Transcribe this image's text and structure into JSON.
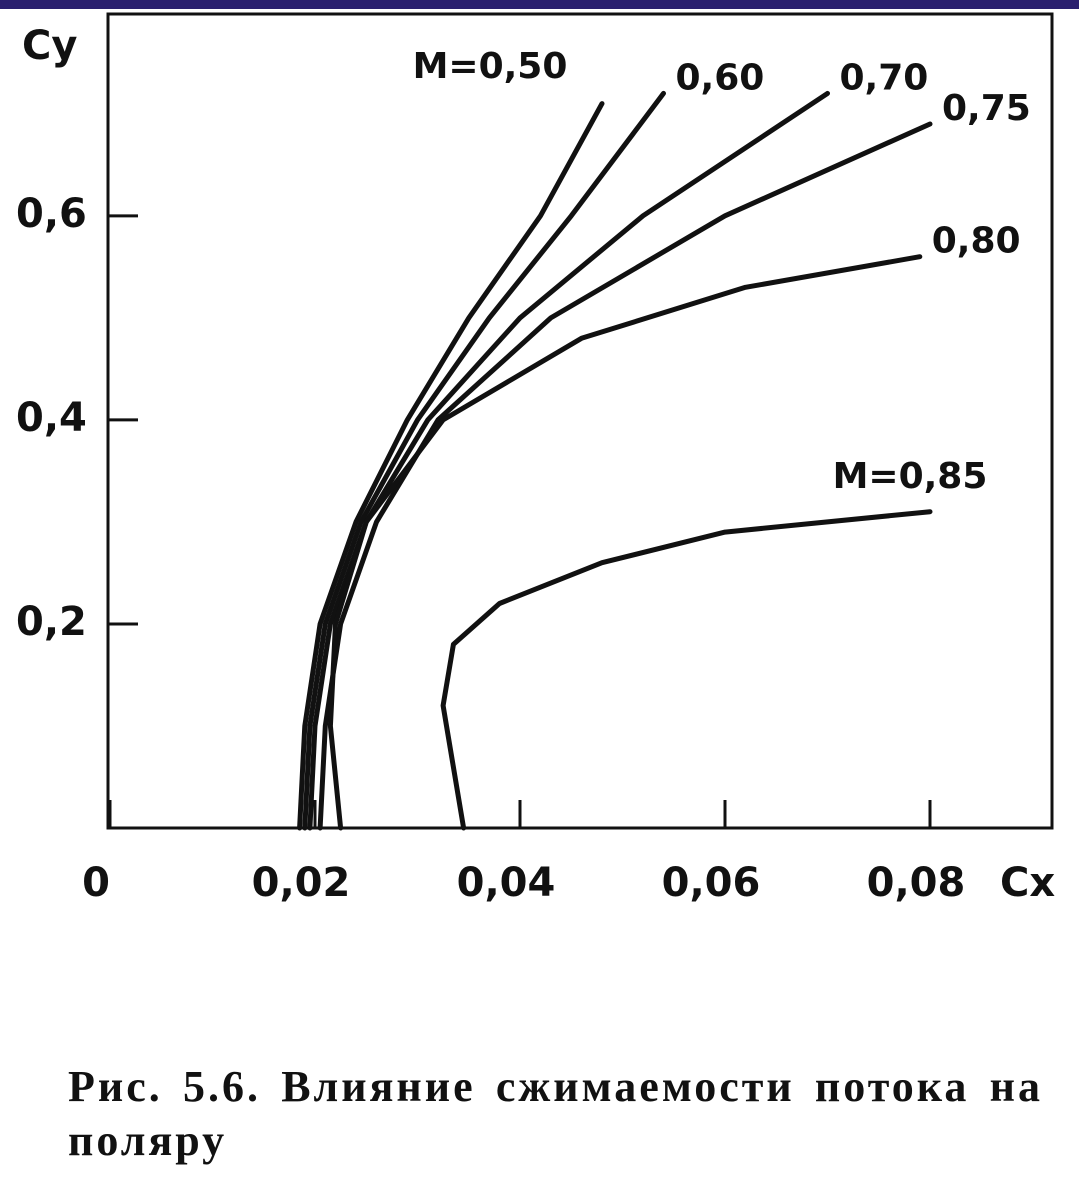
{
  "chart_data": {
    "type": "line",
    "y_label": "Cy",
    "x_label": "Cx",
    "xlim": [
      0,
      0.092
    ],
    "ylim": [
      0,
      0.79
    ],
    "xticks": [
      0,
      {
        "value": 0.02,
        "label": "0,02"
      },
      {
        "value": 0.04,
        "label": "0,04"
      },
      {
        "value": 0.06,
        "label": "0,06"
      },
      {
        "value": 0.08,
        "label": "0,08"
      }
    ],
    "yticks": [
      {
        "value": 0.2,
        "label": "0,2"
      },
      {
        "value": 0.4,
        "label": "0,4"
      },
      {
        "value": 0.6,
        "label": "0,6"
      }
    ],
    "grid": false,
    "series": [
      {
        "name": "M=0,50",
        "color": "#111111",
        "x": [
          0.0185,
          0.019,
          0.0205,
          0.024,
          0.029,
          0.035,
          0.042,
          0.048
        ],
        "values": [
          0,
          0.1,
          0.2,
          0.3,
          0.4,
          0.5,
          0.6,
          0.71
        ]
      },
      {
        "name": "0,60",
        "color": "#111111",
        "x": [
          0.019,
          0.0195,
          0.021,
          0.0245,
          0.03,
          0.037,
          0.045,
          0.054
        ],
        "values": [
          0,
          0.1,
          0.2,
          0.3,
          0.4,
          0.5,
          0.6,
          0.72
        ]
      },
      {
        "name": "0,70",
        "color": "#111111",
        "x": [
          0.0195,
          0.02,
          0.0215,
          0.025,
          0.031,
          0.04,
          0.052,
          0.07
        ],
        "values": [
          0,
          0.1,
          0.2,
          0.3,
          0.4,
          0.5,
          0.6,
          0.72
        ]
      },
      {
        "name": "0,75",
        "color": "#111111",
        "x": [
          0.0205,
          0.021,
          0.0225,
          0.026,
          0.032,
          0.043,
          0.06,
          0.08
        ],
        "values": [
          0,
          0.1,
          0.2,
          0.3,
          0.4,
          0.5,
          0.6,
          0.69
        ]
      },
      {
        "name": "0,80",
        "color": "#111111",
        "x": [
          0.0225,
          0.0215,
          0.022,
          0.025,
          0.0325,
          0.046,
          0.062,
          0.079
        ],
        "values": [
          0,
          0.1,
          0.2,
          0.3,
          0.4,
          0.48,
          0.53,
          0.56
        ]
      },
      {
        "name": "M=0,85",
        "color": "#111111",
        "x": [
          0.0345,
          0.0325,
          0.0335,
          0.038,
          0.048,
          0.06,
          0.08
        ],
        "values": [
          0,
          0.12,
          0.18,
          0.22,
          0.26,
          0.29,
          0.31
        ]
      }
    ]
  },
  "caption": "Рис. 5.6. Влияние сжимаемости потока на поляру"
}
